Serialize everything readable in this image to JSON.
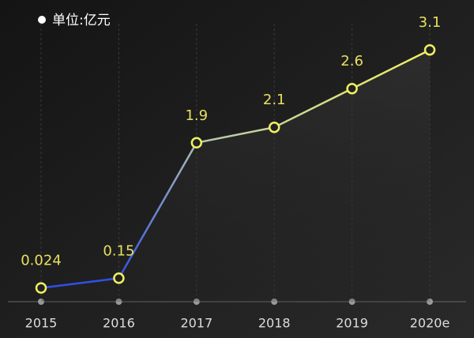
{
  "chart_data": {
    "type": "line",
    "categories": [
      "2015",
      "2016",
      "2017",
      "2018",
      "2019",
      "2020e"
    ],
    "series": [
      {
        "name": "单位:亿元",
        "color": "#f0f060",
        "start_color": "#3050e8",
        "values": [
          0.024,
          0.15,
          1.9,
          2.1,
          2.6,
          3.1
        ]
      }
    ]
  }
}
